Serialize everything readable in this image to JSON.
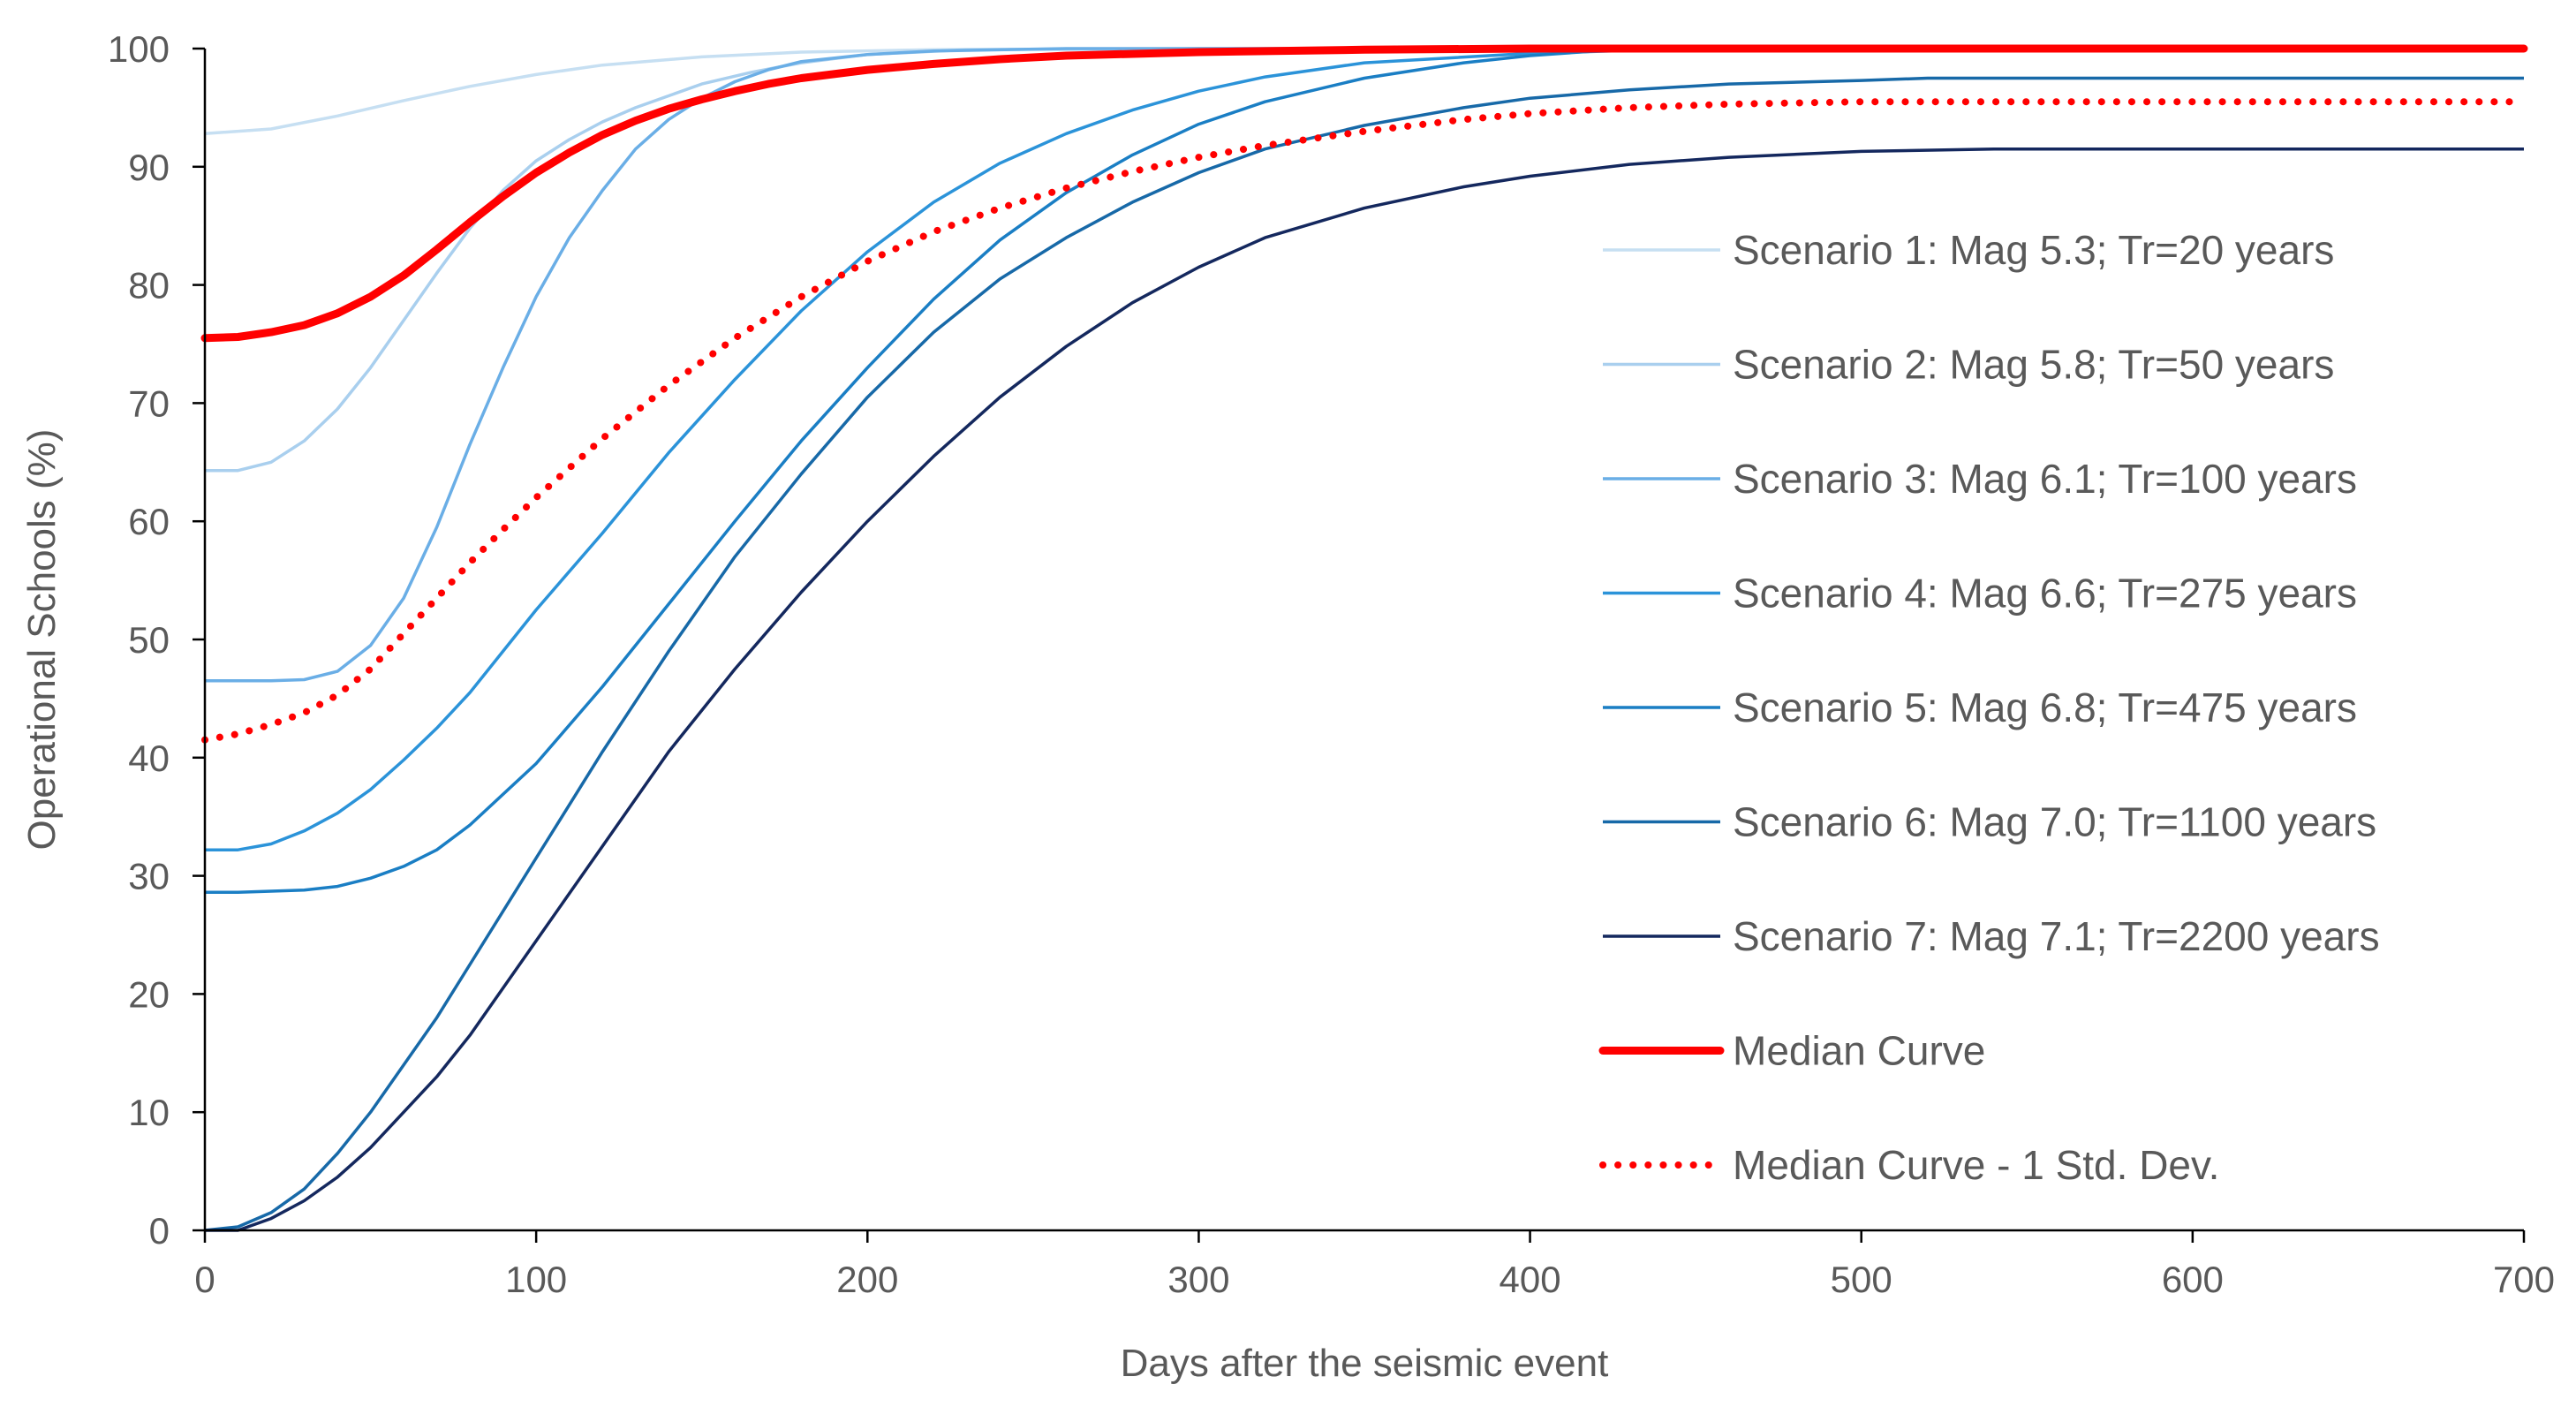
{
  "chart_data": {
    "type": "line",
    "title": "",
    "xlabel": "Days after the seismic event",
    "ylabel": "Operational Schools (%)",
    "xlim": [
      0,
      700
    ],
    "ylim": [
      0,
      100
    ],
    "xticks": [
      0,
      100,
      200,
      300,
      400,
      500,
      600,
      700
    ],
    "yticks": [
      0,
      10,
      20,
      30,
      40,
      50,
      60,
      70,
      80,
      90,
      100
    ],
    "grid": false,
    "legend_position": "right",
    "series": [
      {
        "name": "Scenario 1: Mag 5.3; Tr=20 years",
        "color": "#c6dff2",
        "style": "solid",
        "x": [
          0,
          20,
          40,
          60,
          80,
          100,
          120,
          150,
          180,
          220,
          300,
          700
        ],
        "y": [
          92.8,
          93.2,
          94.3,
          95.6,
          96.8,
          97.8,
          98.6,
          99.3,
          99.7,
          99.9,
          100,
          100
        ]
      },
      {
        "name": "Scenario 2: Mag 5.8; Tr=50 years",
        "color": "#a9cfee",
        "style": "solid",
        "x": [
          0,
          10,
          20,
          30,
          40,
          50,
          60,
          70,
          80,
          90,
          100,
          110,
          120,
          130,
          140,
          150,
          165,
          180,
          200,
          230,
          300,
          700
        ],
        "y": [
          64.3,
          64.3,
          65.0,
          66.8,
          69.5,
          73.0,
          77.0,
          81.0,
          84.8,
          88.0,
          90.5,
          92.3,
          93.8,
          95.0,
          96.0,
          97.0,
          98.0,
          98.8,
          99.5,
          99.9,
          100,
          100
        ]
      },
      {
        "name": "Scenario 3: Mag 6.1; Tr=100 years",
        "color": "#6aaee6",
        "style": "solid",
        "x": [
          0,
          10,
          20,
          30,
          40,
          50,
          60,
          70,
          80,
          90,
          100,
          110,
          120,
          130,
          140,
          150,
          160,
          170,
          180,
          200,
          220,
          260,
          300,
          700
        ],
        "y": [
          46.5,
          46.5,
          46.5,
          46.6,
          47.3,
          49.5,
          53.5,
          59.5,
          66.5,
          73.0,
          79.0,
          84.0,
          88.0,
          91.5,
          94.0,
          95.8,
          97.2,
          98.2,
          98.9,
          99.5,
          99.8,
          100,
          100,
          100
        ]
      },
      {
        "name": "Scenario 4: Mag 6.6; Tr=275 years",
        "color": "#2b93d9",
        "style": "solid",
        "x": [
          0,
          10,
          20,
          30,
          40,
          50,
          60,
          70,
          80,
          100,
          120,
          140,
          160,
          180,
          200,
          220,
          240,
          260,
          280,
          300,
          320,
          350,
          400,
          450,
          700
        ],
        "y": [
          32.2,
          32.2,
          32.7,
          33.8,
          35.3,
          37.3,
          39.8,
          42.5,
          45.5,
          52.5,
          59.0,
          65.8,
          72.0,
          77.8,
          82.8,
          87.0,
          90.3,
          92.8,
          94.8,
          96.4,
          97.6,
          98.8,
          99.6,
          100,
          100
        ]
      },
      {
        "name": "Scenario 5: Mag 6.8; Tr=475 years",
        "color": "#1a7ec4",
        "style": "solid",
        "x": [
          0,
          10,
          20,
          30,
          40,
          50,
          60,
          70,
          80,
          100,
          120,
          140,
          160,
          180,
          200,
          220,
          240,
          260,
          280,
          300,
          320,
          350,
          380,
          400,
          420,
          700
        ],
        "y": [
          28.6,
          28.6,
          28.7,
          28.8,
          29.1,
          29.8,
          30.8,
          32.2,
          34.3,
          39.5,
          46.0,
          53.0,
          60.0,
          66.8,
          73.0,
          78.8,
          83.8,
          87.8,
          91.0,
          93.6,
          95.5,
          97.5,
          98.8,
          99.4,
          99.8,
          99.9
        ]
      },
      {
        "name": "Scenario 6: Mag 7.0; Tr=1100 years",
        "color": "#1769a8",
        "style": "solid",
        "x": [
          0,
          10,
          20,
          30,
          40,
          50,
          60,
          70,
          80,
          100,
          120,
          140,
          160,
          180,
          200,
          220,
          240,
          260,
          280,
          300,
          320,
          350,
          380,
          400,
          430,
          460,
          500,
          520,
          700
        ],
        "y": [
          0,
          0.3,
          1.5,
          3.5,
          6.5,
          10.0,
          14.0,
          18.0,
          22.5,
          31.5,
          40.5,
          49.0,
          57.0,
          64.0,
          70.5,
          76.0,
          80.5,
          84.0,
          87.0,
          89.5,
          91.5,
          93.5,
          95.0,
          95.8,
          96.5,
          97.0,
          97.3,
          97.5,
          97.5
        ]
      },
      {
        "name": "Scenario 7: Mag 7.1; Tr=2200 years",
        "color": "#14285e",
        "style": "solid",
        "x": [
          0,
          10,
          20,
          30,
          40,
          50,
          60,
          70,
          80,
          100,
          120,
          140,
          160,
          180,
          200,
          220,
          240,
          260,
          280,
          300,
          320,
          350,
          380,
          400,
          430,
          460,
          500,
          540,
          700
        ],
        "y": [
          0,
          0,
          1.0,
          2.5,
          4.5,
          7.0,
          10.0,
          13.0,
          16.5,
          24.5,
          32.5,
          40.5,
          47.5,
          54.0,
          60.0,
          65.5,
          70.5,
          74.8,
          78.5,
          81.5,
          84.0,
          86.5,
          88.3,
          89.2,
          90.2,
          90.8,
          91.3,
          91.5,
          91.5
        ]
      },
      {
        "name": "Median Curve",
        "color": "#ff0000",
        "style": "thick",
        "x": [
          0,
          10,
          20,
          30,
          40,
          50,
          60,
          70,
          80,
          90,
          100,
          110,
          120,
          130,
          140,
          150,
          160,
          170,
          180,
          200,
          220,
          240,
          260,
          300,
          350,
          400,
          700
        ],
        "y": [
          75.5,
          75.6,
          76.0,
          76.6,
          77.6,
          79.0,
          80.8,
          83.0,
          85.3,
          87.5,
          89.5,
          91.2,
          92.7,
          93.9,
          94.9,
          95.7,
          96.4,
          97.0,
          97.5,
          98.2,
          98.7,
          99.1,
          99.4,
          99.7,
          99.9,
          100,
          100
        ]
      },
      {
        "name": "Median Curve - 1 Std. Dev.",
        "color": "#ff0000",
        "style": "dotted",
        "x": [
          0,
          10,
          20,
          30,
          40,
          50,
          60,
          70,
          80,
          90,
          100,
          120,
          140,
          160,
          180,
          200,
          220,
          240,
          260,
          280,
          300,
          320,
          350,
          380,
          400,
          430,
          460,
          500,
          700
        ],
        "y": [
          41.5,
          42.0,
          42.8,
          43.8,
          45.3,
          47.5,
          50.5,
          53.5,
          56.5,
          59.3,
          62.0,
          67.0,
          71.5,
          75.5,
          79.0,
          82.0,
          84.5,
          86.5,
          88.2,
          89.6,
          90.8,
          91.8,
          93.0,
          94.0,
          94.5,
          95.0,
          95.3,
          95.5,
          95.5
        ]
      }
    ]
  }
}
